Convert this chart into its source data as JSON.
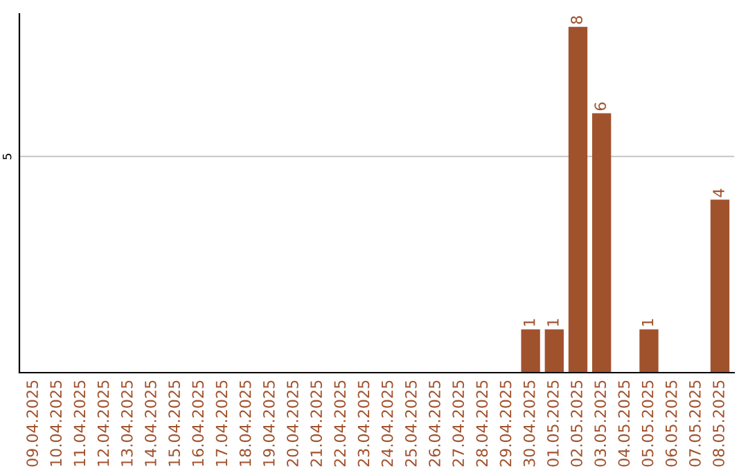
{
  "chart_data": {
    "type": "bar",
    "ylim": [
      0,
      8.3
    ],
    "categories": [
      "09.04.2025",
      "10.04.2025",
      "11.04.2025",
      "12.04.2025",
      "13.04.2025",
      "14.04.2025",
      "15.04.2025",
      "16.04.2025",
      "17.04.2025",
      "18.04.2025",
      "19.04.2025",
      "20.04.2025",
      "21.04.2025",
      "22.04.2025",
      "23.04.2025",
      "24.04.2025",
      "25.04.2025",
      "26.04.2025",
      "27.04.2025",
      "28.04.2025",
      "29.04.2025",
      "30.04.2025",
      "01.05.2025",
      "02.05.2025",
      "03.05.2025",
      "04.05.2025",
      "05.05.2025",
      "06.05.2025",
      "07.05.2025",
      "08.05.2025"
    ],
    "values": [
      null,
      null,
      null,
      null,
      null,
      null,
      null,
      null,
      null,
      null,
      null,
      null,
      null,
      null,
      null,
      null,
      null,
      null,
      null,
      null,
      null,
      1,
      1,
      8,
      6,
      null,
      1,
      null,
      null,
      4
    ],
    "value_labels": [
      null,
      null,
      null,
      null,
      null,
      null,
      null,
      null,
      null,
      null,
      null,
      null,
      null,
      null,
      null,
      null,
      null,
      null,
      null,
      null,
      null,
      "1",
      "1",
      "8",
      "6",
      null,
      "1",
      null,
      null,
      "4"
    ],
    "color": "#a0522d",
    "ref_lines": [
      {
        "axis": "y",
        "value": 5,
        "label": "5",
        "color": "#cccccc"
      }
    ]
  }
}
